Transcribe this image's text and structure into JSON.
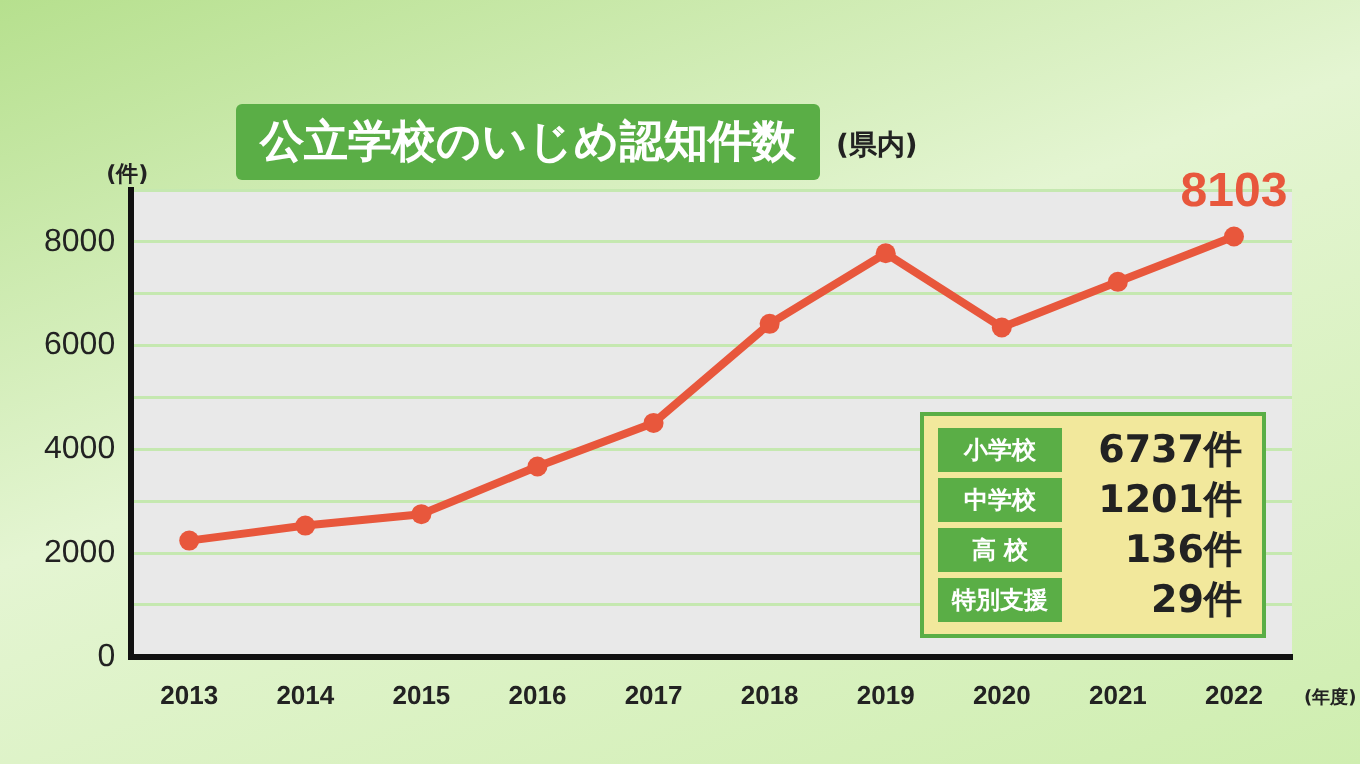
{
  "chart_data": {
    "type": "line",
    "title": "公立学校のいじめ認知件数",
    "ylabel": "(件)",
    "xlabel": "(年度)",
    "categories": [
      "2013",
      "2014",
      "2015",
      "2016",
      "2017",
      "2018",
      "2019",
      "2020",
      "2021",
      "2022"
    ],
    "series": [
      {
        "color": "#e8573c",
        "values": [
          2240,
          2530,
          2750,
          3670,
          4510,
          6420,
          7780,
          6350,
          7230,
          8103
        ],
        "value_labels": [
          null,
          null,
          null,
          null,
          null,
          null,
          null,
          null,
          null,
          "8103"
        ]
      }
    ],
    "ylim": [
      0,
      9000
    ],
    "yticks": [
      0,
      {
        "value": 1000,
        "label": null
      },
      2000,
      {
        "value": 3000,
        "label": null
      },
      4000,
      {
        "value": 5000,
        "label": null
      },
      6000,
      {
        "value": 7000,
        "label": null
      },
      8000,
      {
        "value": 9000,
        "label": null
      }
    ],
    "grid": "y",
    "legend": false,
    "marker": "circle",
    "line_style": "solid",
    "annotations": [
      "(県内)",
      "小学校",
      "6737件",
      "中学校",
      "1201件",
      "高 校",
      "136件",
      "特別支援",
      "29件"
    ]
  }
}
